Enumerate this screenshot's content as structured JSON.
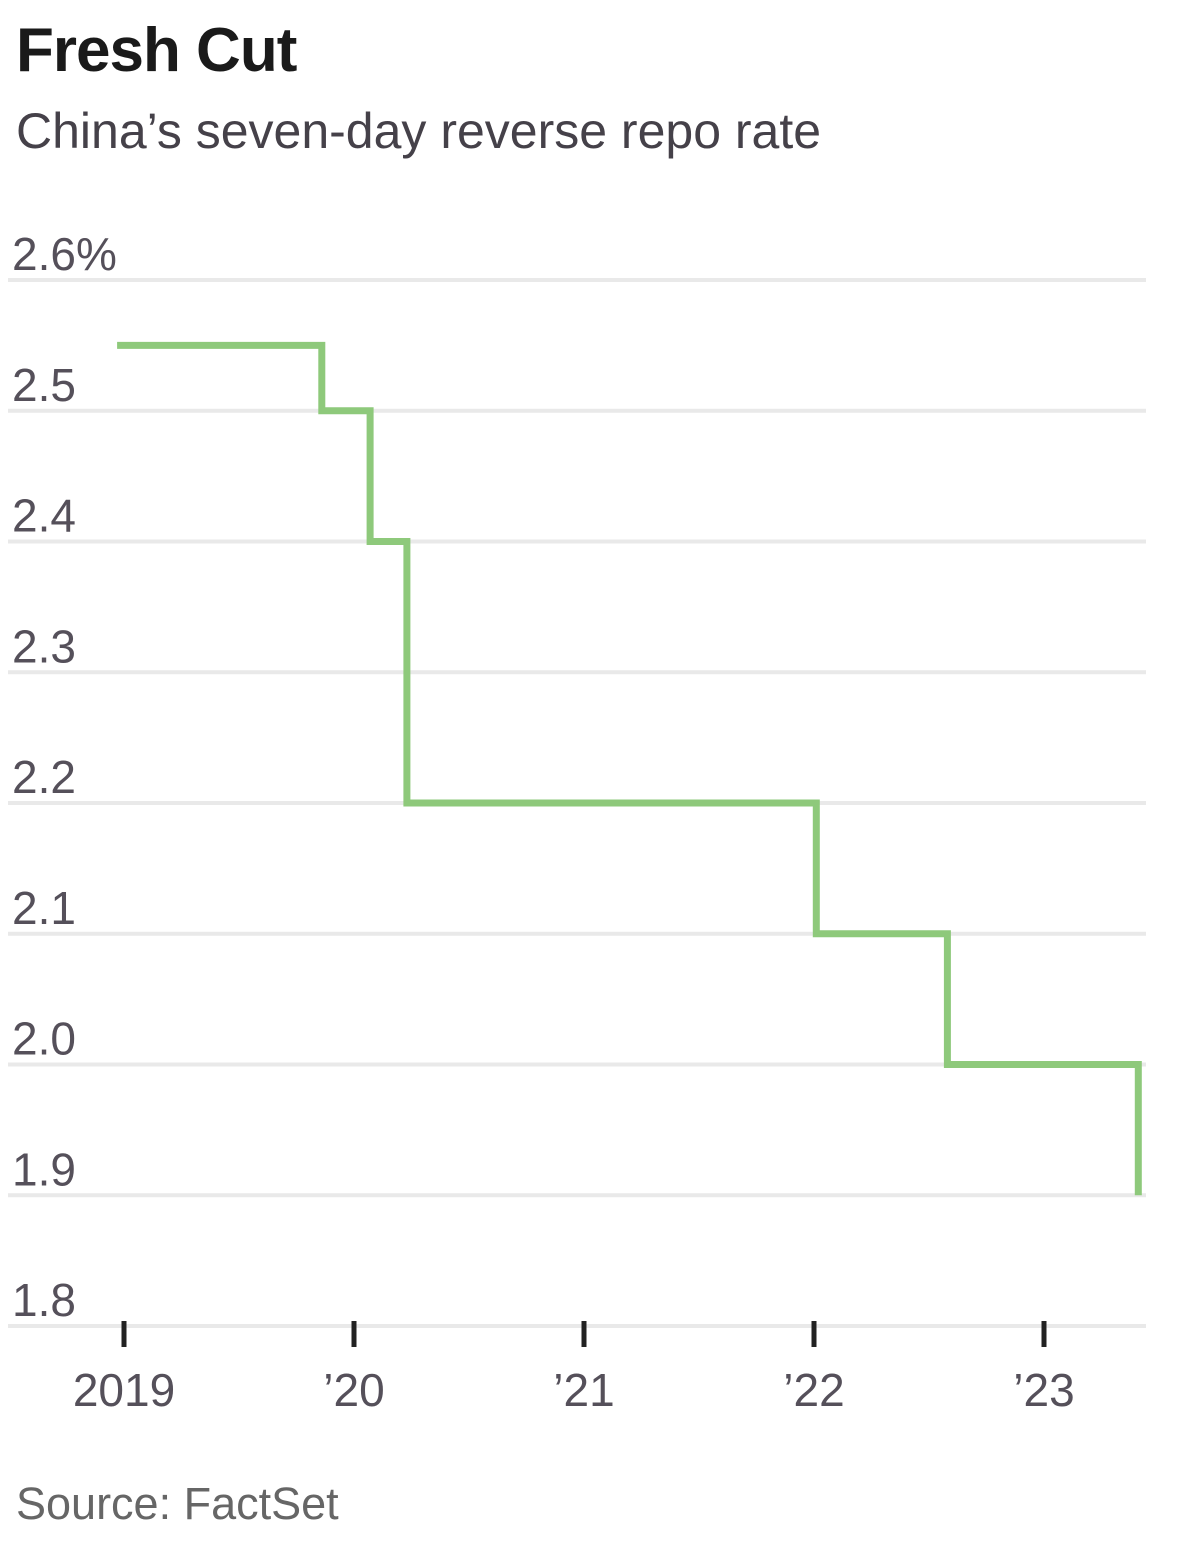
{
  "header": {
    "title": "Fresh Cut",
    "subtitle": "China’s seven-day reverse repo rate"
  },
  "footer": {
    "source": "Source: FactSet"
  },
  "colors": {
    "line": "#8ec97b",
    "gridline": "#e9e9e9",
    "tick": "#222222",
    "title": "#1a1a1a",
    "subtitle": "#454149",
    "axis_label": "#55505a",
    "source": "#666666"
  },
  "chart_data": {
    "type": "line",
    "subtype": "step",
    "title": "Fresh Cut",
    "subtitle": "China’s seven-day reverse repo rate",
    "source": "Source: FactSet",
    "unit": "percent",
    "grid": true,
    "legend": "none",
    "ylim": [
      1.8,
      2.6
    ],
    "xlim": [
      2018.97,
      2023.45
    ],
    "y_ticks": [
      {
        "label": "2.6%",
        "value": 2.6
      },
      {
        "label": "2.5",
        "value": 2.5
      },
      {
        "label": "2.4",
        "value": 2.4
      },
      {
        "label": "2.3",
        "value": 2.3
      },
      {
        "label": "2.2",
        "value": 2.2
      },
      {
        "label": "2.1",
        "value": 2.1
      },
      {
        "label": "2.0",
        "value": 2.0
      },
      {
        "label": "1.9",
        "value": 1.9
      },
      {
        "label": "1.8",
        "value": 1.8
      }
    ],
    "x_ticks": [
      {
        "label": "2019",
        "year": 2019
      },
      {
        "label": "’20",
        "year": 2020
      },
      {
        "label": "’21",
        "year": 2021
      },
      {
        "label": "’22",
        "year": 2022
      },
      {
        "label": "’23",
        "year": 2023
      }
    ],
    "series": [
      {
        "name": "China seven-day reverse repo rate (%)",
        "points": [
          [
            2018.97,
            2.55
          ],
          [
            2019.86,
            2.55
          ],
          [
            2019.86,
            2.5
          ],
          [
            2020.07,
            2.5
          ],
          [
            2020.07,
            2.4
          ],
          [
            2020.23,
            2.4
          ],
          [
            2020.23,
            2.2
          ],
          [
            2022.01,
            2.2
          ],
          [
            2022.01,
            2.1
          ],
          [
            2022.58,
            2.1
          ],
          [
            2022.58,
            2.0
          ],
          [
            2023.41,
            2.0
          ],
          [
            2023.41,
            1.9
          ]
        ]
      }
    ]
  }
}
